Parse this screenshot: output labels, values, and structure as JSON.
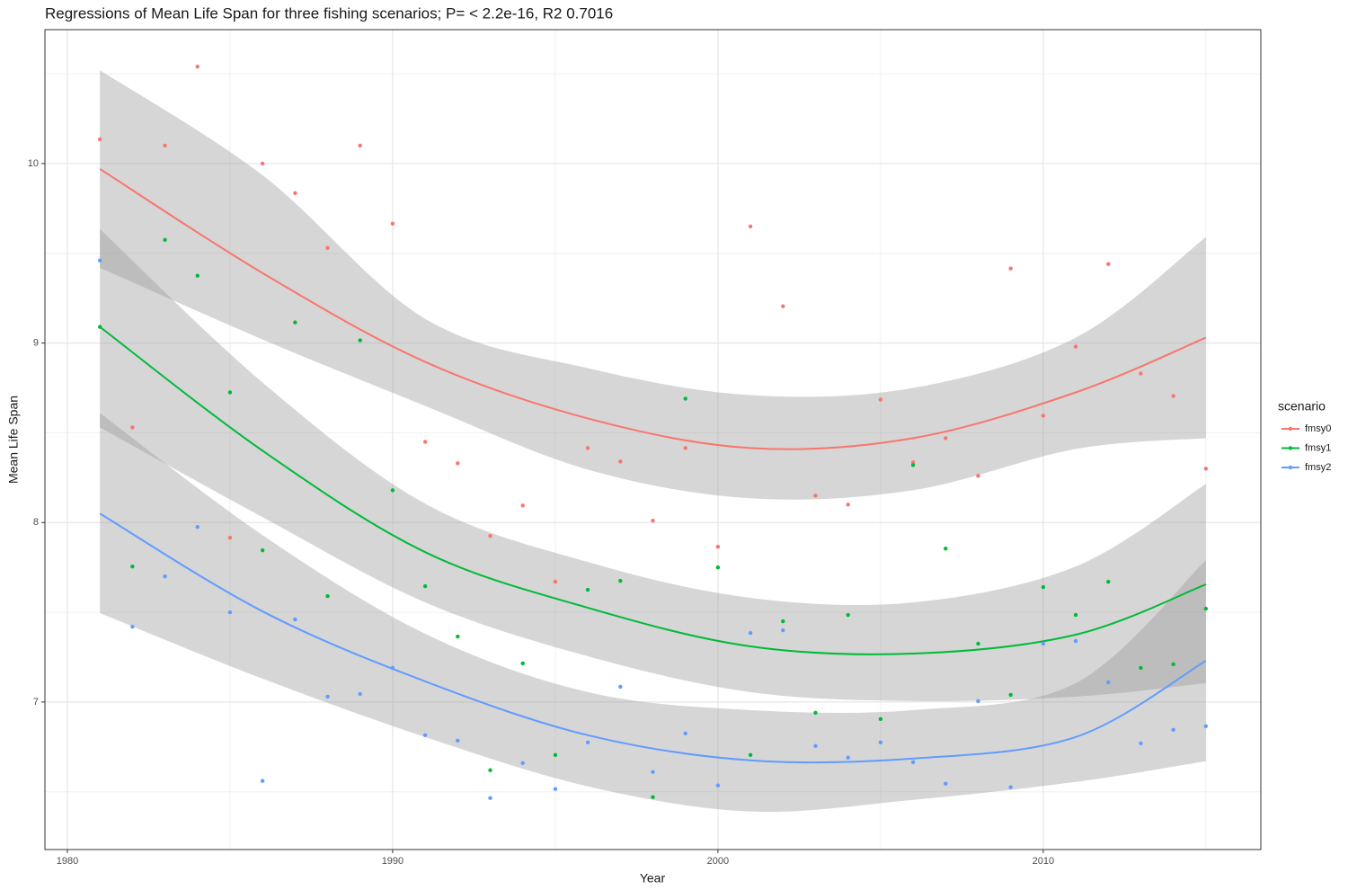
{
  "chart_data": {
    "type": "scatter",
    "title": "Regressions of Mean Life Span for three fishing scenarios; P= < 2.2e-16, R2 0.7016",
    "x_label": "Year",
    "y_label": "Mean Life Span",
    "legend_title": "scenario",
    "legend_position": "right",
    "grid": true,
    "grid_minor": true,
    "xlim": [
      1979.31,
      2016.69
    ],
    "ylim": [
      6.178,
      10.746
    ],
    "xticks": [
      1980,
      1990,
      2000,
      2010
    ],
    "yticks": [
      7,
      8,
      9,
      10
    ],
    "x": [
      1981,
      1982,
      1983,
      1984,
      1985,
      1986,
      1987,
      1988,
      1989,
      1990,
      1991,
      1992,
      1993,
      1994,
      1995,
      1996,
      1997,
      1998,
      1999,
      2000,
      2001,
      2002,
      2003,
      2004,
      2005,
      2006,
      2007,
      2008,
      2009,
      2010,
      2011,
      2012,
      2013,
      2014,
      2015
    ],
    "fit_x": [
      1981,
      1986,
      1991,
      1996,
      2001,
      2006,
      2011,
      2015
    ],
    "series": [
      {
        "name": "fmsy0",
        "color": "#F8766D",
        "values": [
          10.135,
          8.53,
          10.1,
          10.54,
          7.915,
          10.0,
          9.835,
          9.53,
          10.1,
          9.665,
          8.45,
          8.33,
          7.925,
          8.095,
          7.67,
          8.415,
          8.34,
          8.01,
          8.415,
          7.865,
          9.65,
          9.205,
          8.15,
          8.1,
          8.685,
          8.335,
          8.47,
          8.26,
          9.415,
          8.595,
          8.98,
          9.44,
          8.83,
          8.705,
          8.3
        ],
        "fit": {
          "values": [
            9.97,
            9.39,
            8.895,
            8.58,
            8.415,
            8.47,
            8.725,
            9.03
          ],
          "lower": [
            9.42,
            9.02,
            8.65,
            8.295,
            8.135,
            8.18,
            8.41,
            8.47
          ],
          "upper": [
            10.52,
            9.935,
            9.135,
            8.86,
            8.71,
            8.75,
            9.03,
            9.59
          ]
        }
      },
      {
        "name": "fmsy1",
        "color": "#00BA38",
        "values": [
          9.09,
          7.755,
          9.575,
          9.375,
          8.725,
          7.845,
          9.115,
          7.59,
          9.015,
          8.18,
          7.645,
          7.365,
          6.62,
          7.215,
          6.705,
          7.625,
          7.675,
          6.47,
          8.69,
          7.75,
          6.705,
          7.45,
          6.94,
          7.485,
          6.905,
          8.32,
          7.855,
          7.325,
          7.04,
          7.64,
          7.485,
          7.67,
          7.19,
          7.21,
          7.52
        ],
        "fit": {
          "values": [
            9.09,
            8.4,
            7.835,
            7.525,
            7.31,
            7.27,
            7.375,
            7.655
          ],
          "lower": [
            8.53,
            8.03,
            7.555,
            7.255,
            7.055,
            7.005,
            7.03,
            7.105
          ],
          "upper": [
            9.635,
            8.78,
            8.105,
            7.78,
            7.58,
            7.555,
            7.755,
            8.215
          ]
        }
      },
      {
        "name": "fmsy2",
        "color": "#619CFF",
        "values": [
          9.46,
          7.42,
          7.7,
          7.975,
          7.5,
          6.56,
          7.46,
          7.03,
          7.045,
          7.19,
          6.815,
          6.785,
          6.465,
          6.66,
          6.515,
          6.775,
          7.085,
          6.61,
          6.825,
          6.535,
          7.385,
          7.4,
          6.755,
          6.69,
          6.775,
          6.665,
          6.545,
          7.005,
          6.525,
          7.325,
          7.34,
          7.11,
          6.77,
          6.845,
          6.865
        ],
        "fit": {
          "values": [
            8.05,
            7.505,
            7.115,
            6.815,
            6.675,
            6.685,
            6.805,
            7.23
          ],
          "lower": [
            7.495,
            7.13,
            6.805,
            6.53,
            6.39,
            6.455,
            6.555,
            6.67
          ],
          "upper": [
            8.61,
            7.93,
            7.38,
            7.055,
            6.955,
            6.955,
            7.105,
            7.79
          ]
        }
      }
    ]
  }
}
